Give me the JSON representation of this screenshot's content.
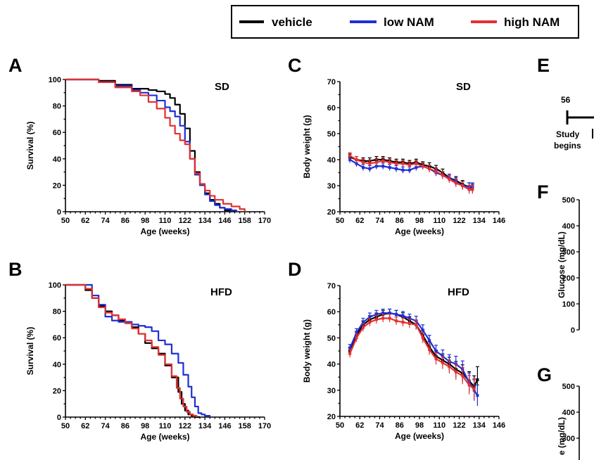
{
  "legend": {
    "entries": [
      {
        "label": "vehicle",
        "color": "#000000"
      },
      {
        "label": "low NAM",
        "color": "#1f2fd6"
      },
      {
        "label": "high NAM",
        "color": "#e23030"
      }
    ]
  },
  "colors": {
    "vehicle": "#000000",
    "low_nam": "#1f2fd6",
    "high_nam": "#e23030"
  },
  "panels": {
    "A": {
      "letter": "A",
      "tag": "SD",
      "xlabel": "Age (weeks)",
      "ylabel": "Survival (%)"
    },
    "B": {
      "letter": "B",
      "tag": "HFD",
      "xlabel": "Age (weeks)",
      "ylabel": "Survival (%)"
    },
    "C": {
      "letter": "C",
      "tag": "SD",
      "xlabel": "Age (weeks)",
      "ylabel": "Body weight (g)"
    },
    "D": {
      "letter": "D",
      "tag": "HFD",
      "xlabel": "Age (weeks)",
      "ylabel": "Body weight (g)"
    },
    "E": {
      "letter": "E",
      "timeline_value": "56",
      "timeline_label_1": "Study",
      "timeline_label_2": "begins"
    },
    "F": {
      "letter": "F",
      "ylabel": "Glucose (mg/dL)"
    },
    "G": {
      "letter": "G",
      "ylabel": "e (mg/dL)"
    }
  },
  "chart_data": [
    {
      "panel": "A",
      "type": "line",
      "title": "SD",
      "xlabel": "Age (weeks)",
      "ylabel": "Survival (%)",
      "xlim": [
        50,
        170
      ],
      "ylim": [
        0,
        100
      ],
      "xticks": [
        50,
        62,
        74,
        86,
        98,
        110,
        122,
        134,
        146,
        158,
        170
      ],
      "yticks": [
        0,
        20,
        40,
        60,
        80,
        100
      ],
      "series": [
        {
          "name": "vehicle",
          "color": "#000000",
          "step": true,
          "x": [
            50,
            60,
            70,
            80,
            90,
            100,
            105,
            110,
            113,
            116,
            119,
            122,
            125,
            128,
            131,
            134,
            137,
            140,
            143,
            146,
            149,
            152
          ],
          "y": [
            100,
            100,
            99,
            96,
            93,
            92,
            91,
            89,
            86,
            81,
            74,
            63,
            46,
            30,
            20,
            14,
            9,
            6,
            3,
            1,
            1,
            0
          ]
        },
        {
          "name": "low NAM",
          "color": "#1f2fd6",
          "step": true,
          "x": [
            50,
            60,
            70,
            80,
            90,
            95,
            100,
            105,
            110,
            113,
            116,
            119,
            122,
            125,
            128,
            131,
            134,
            137,
            140,
            143,
            146,
            150,
            153
          ],
          "y": [
            100,
            100,
            98,
            95,
            92,
            90,
            88,
            84,
            79,
            76,
            72,
            65,
            53,
            40,
            28,
            20,
            13,
            8,
            5,
            3,
            2,
            1,
            0
          ]
        },
        {
          "name": "high NAM",
          "color": "#e23030",
          "step": true,
          "x": [
            50,
            60,
            70,
            80,
            90,
            95,
            100,
            105,
            110,
            113,
            116,
            119,
            122,
            125,
            128,
            131,
            134,
            137,
            140,
            145,
            150,
            155,
            158
          ],
          "y": [
            100,
            100,
            98,
            94,
            91,
            88,
            83,
            78,
            71,
            65,
            59,
            54,
            51,
            40,
            29,
            21,
            16,
            12,
            9,
            6,
            4,
            2,
            0
          ]
        }
      ]
    },
    {
      "panel": "B",
      "type": "line",
      "title": "HFD",
      "xlabel": "Age (weeks)",
      "ylabel": "Survival (%)",
      "xlim": [
        50,
        170
      ],
      "ylim": [
        0,
        100
      ],
      "xticks": [
        50,
        62,
        74,
        86,
        98,
        110,
        122,
        134,
        146,
        158,
        170
      ],
      "yticks": [
        0,
        20,
        40,
        60,
        80,
        100
      ],
      "series": [
        {
          "name": "vehicle",
          "color": "#000000",
          "step": true,
          "x": [
            50,
            58,
            62,
            66,
            70,
            74,
            78,
            82,
            86,
            90,
            94,
            98,
            102,
            106,
            110,
            114,
            118,
            120,
            122,
            124,
            126,
            128,
            131
          ],
          "y": [
            100,
            100,
            96,
            90,
            84,
            80,
            77,
            73,
            71,
            68,
            63,
            56,
            52,
            48,
            39,
            30,
            19,
            10,
            5,
            2,
            1,
            0,
            0
          ]
        },
        {
          "name": "low NAM",
          "color": "#1f2fd6",
          "step": true,
          "x": [
            50,
            58,
            63,
            66,
            70,
            74,
            78,
            82,
            86,
            90,
            94,
            98,
            102,
            106,
            110,
            114,
            118,
            121,
            124,
            126,
            128,
            130,
            132,
            134,
            137
          ],
          "y": [
            100,
            100,
            100,
            92,
            85,
            76,
            73,
            72,
            72,
            70,
            69,
            68,
            65,
            58,
            55,
            48,
            41,
            32,
            23,
            15,
            8,
            3,
            2,
            1,
            0
          ]
        },
        {
          "name": "high NAM",
          "color": "#e23030",
          "step": true,
          "x": [
            50,
            58,
            62,
            66,
            70,
            74,
            78,
            82,
            86,
            90,
            94,
            98,
            102,
            106,
            110,
            114,
            117,
            119,
            121,
            123,
            125,
            127,
            129
          ],
          "y": [
            100,
            100,
            97,
            90,
            83,
            79,
            77,
            74,
            71,
            67,
            63,
            58,
            53,
            47,
            40,
            31,
            22,
            14,
            8,
            4,
            2,
            1,
            0
          ]
        }
      ]
    },
    {
      "panel": "C",
      "type": "line",
      "title": "SD",
      "xlabel": "Age (weeks)",
      "ylabel": "Body weight (g)",
      "xlim": [
        50,
        146
      ],
      "ylim": [
        20,
        70
      ],
      "xticks": [
        50,
        62,
        74,
        86,
        98,
        110,
        122,
        134,
        146
      ],
      "yticks": [
        20,
        30,
        40,
        50,
        60,
        70
      ],
      "series": [
        {
          "name": "vehicle",
          "color": "#000000",
          "error_bars": true,
          "x": [
            56,
            60,
            64,
            68,
            72,
            76,
            80,
            84,
            88,
            92,
            96,
            100,
            104,
            108,
            112,
            116,
            120,
            124,
            128,
            130
          ],
          "y": [
            41,
            40,
            39.5,
            39.5,
            40,
            40,
            39.5,
            39,
            39,
            38.5,
            39,
            38,
            37.5,
            36.5,
            35,
            33,
            32,
            30.5,
            29.5,
            29
          ],
          "err": [
            1.2,
            1.2,
            1.2,
            1.2,
            1.2,
            1.2,
            1.2,
            1.2,
            1.2,
            1.2,
            1.2,
            1.2,
            1.3,
            1.3,
            1.4,
            1.4,
            1.5,
            1.5,
            1.6,
            1.6
          ]
        },
        {
          "name": "low NAM",
          "color": "#1f2fd6",
          "error_bars": true,
          "x": [
            56,
            60,
            64,
            68,
            72,
            76,
            80,
            84,
            88,
            92,
            96,
            100,
            104,
            108,
            112,
            116,
            120,
            124,
            128,
            130
          ],
          "y": [
            40,
            38.5,
            37,
            36.5,
            37.5,
            37.5,
            37,
            36.5,
            36,
            36,
            37,
            37.5,
            36.5,
            35,
            34,
            33,
            31.5,
            30,
            29.5,
            29.5
          ],
          "err": [
            1.2,
            1.2,
            1.2,
            1.2,
            1.2,
            1.2,
            1.2,
            1.2,
            1.2,
            1.2,
            1.2,
            1.2,
            1.3,
            1.3,
            1.4,
            1.4,
            1.5,
            1.5,
            1.6,
            1.6
          ]
        },
        {
          "name": "high NAM",
          "color": "#e23030",
          "error_bars": true,
          "x": [
            56,
            60,
            64,
            68,
            72,
            76,
            80,
            84,
            88,
            92,
            96,
            100,
            104,
            108,
            112,
            116,
            120,
            124,
            128,
            130
          ],
          "y": [
            41.5,
            40,
            39,
            38.5,
            39,
            39.5,
            39,
            38.5,
            38.5,
            38,
            38.5,
            37.5,
            36.5,
            35.5,
            34,
            32.5,
            31,
            30,
            28.5,
            28.5
          ],
          "err": [
            1.2,
            1.2,
            1.2,
            1.2,
            1.2,
            1.2,
            1.2,
            1.2,
            1.2,
            1.2,
            1.2,
            1.2,
            1.3,
            1.3,
            1.4,
            1.4,
            1.5,
            1.5,
            1.6,
            1.6
          ]
        }
      ]
    },
    {
      "panel": "D",
      "type": "line",
      "title": "HFD",
      "xlabel": "Age (weeks)",
      "ylabel": "Body weight (g)",
      "xlim": [
        50,
        146
      ],
      "ylim": [
        20,
        70
      ],
      "xticks": [
        50,
        62,
        74,
        86,
        98,
        110,
        122,
        134,
        146
      ],
      "yticks": [
        20,
        30,
        40,
        50,
        60,
        70
      ],
      "series": [
        {
          "name": "vehicle",
          "color": "#000000",
          "error_bars": true,
          "x": [
            56,
            60,
            64,
            68,
            72,
            76,
            80,
            84,
            88,
            92,
            96,
            100,
            104,
            108,
            112,
            116,
            120,
            124,
            128,
            131,
            133
          ],
          "y": [
            45,
            51,
            55,
            57,
            58,
            59,
            59.5,
            59,
            58,
            56.5,
            55,
            51,
            46.5,
            43,
            41.5,
            40,
            38,
            36.5,
            33.5,
            31.5,
            34
          ],
          "err": [
            1.5,
            1.5,
            1.5,
            1.5,
            1.5,
            1.5,
            1.5,
            1.5,
            1.6,
            1.6,
            1.8,
            2,
            2,
            2.2,
            2.4,
            2.6,
            3,
            3.2,
            3.6,
            4,
            5
          ]
        },
        {
          "name": "low NAM",
          "color": "#1f2fd6",
          "error_bars": true,
          "x": [
            56,
            60,
            64,
            68,
            72,
            76,
            80,
            84,
            88,
            92,
            96,
            100,
            104,
            108,
            112,
            116,
            120,
            124,
            128,
            131,
            133
          ],
          "y": [
            46,
            52,
            56,
            58,
            59,
            59.5,
            59.5,
            59,
            58.5,
            57.5,
            56.5,
            53,
            49,
            45,
            43,
            41,
            40,
            38,
            33,
            30,
            28
          ],
          "err": [
            1.5,
            1.5,
            1.5,
            1.5,
            1.5,
            1.5,
            1.5,
            1.5,
            1.6,
            1.6,
            1.8,
            2,
            2,
            2.2,
            2.4,
            2.6,
            3,
            3.2,
            3.6,
            4,
            4
          ]
        },
        {
          "name": "high NAM",
          "color": "#e23030",
          "error_bars": true,
          "x": [
            56,
            60,
            64,
            68,
            72,
            76,
            80,
            84,
            88,
            92,
            96,
            100,
            104,
            108,
            112,
            116,
            120,
            124,
            128,
            131
          ],
          "y": [
            44,
            50,
            54,
            56,
            57,
            57.5,
            57.5,
            56.5,
            56,
            55.5,
            55,
            50,
            45.5,
            42,
            40.5,
            39,
            37,
            35.5,
            32,
            30.5
          ],
          "err": [
            1.5,
            1.5,
            1.5,
            1.5,
            1.5,
            1.5,
            1.5,
            1.5,
            1.6,
            1.6,
            1.8,
            2,
            2,
            2.2,
            2.4,
            2.6,
            3,
            3.2,
            3.6,
            4
          ]
        }
      ]
    },
    {
      "panel": "F",
      "type": "scatter",
      "title": "",
      "xlabel": "",
      "ylabel": "Glucose (mg/dL)",
      "ylim": [
        0,
        500
      ],
      "yticks": [
        0,
        100,
        200,
        300,
        400,
        500
      ],
      "series": []
    },
    {
      "panel": "G",
      "type": "scatter",
      "title": "",
      "xlabel": "",
      "ylabel": "e (mg/dL)",
      "ylim": [
        0,
        500
      ],
      "yticks": [
        300,
        400,
        500
      ],
      "series": []
    }
  ]
}
